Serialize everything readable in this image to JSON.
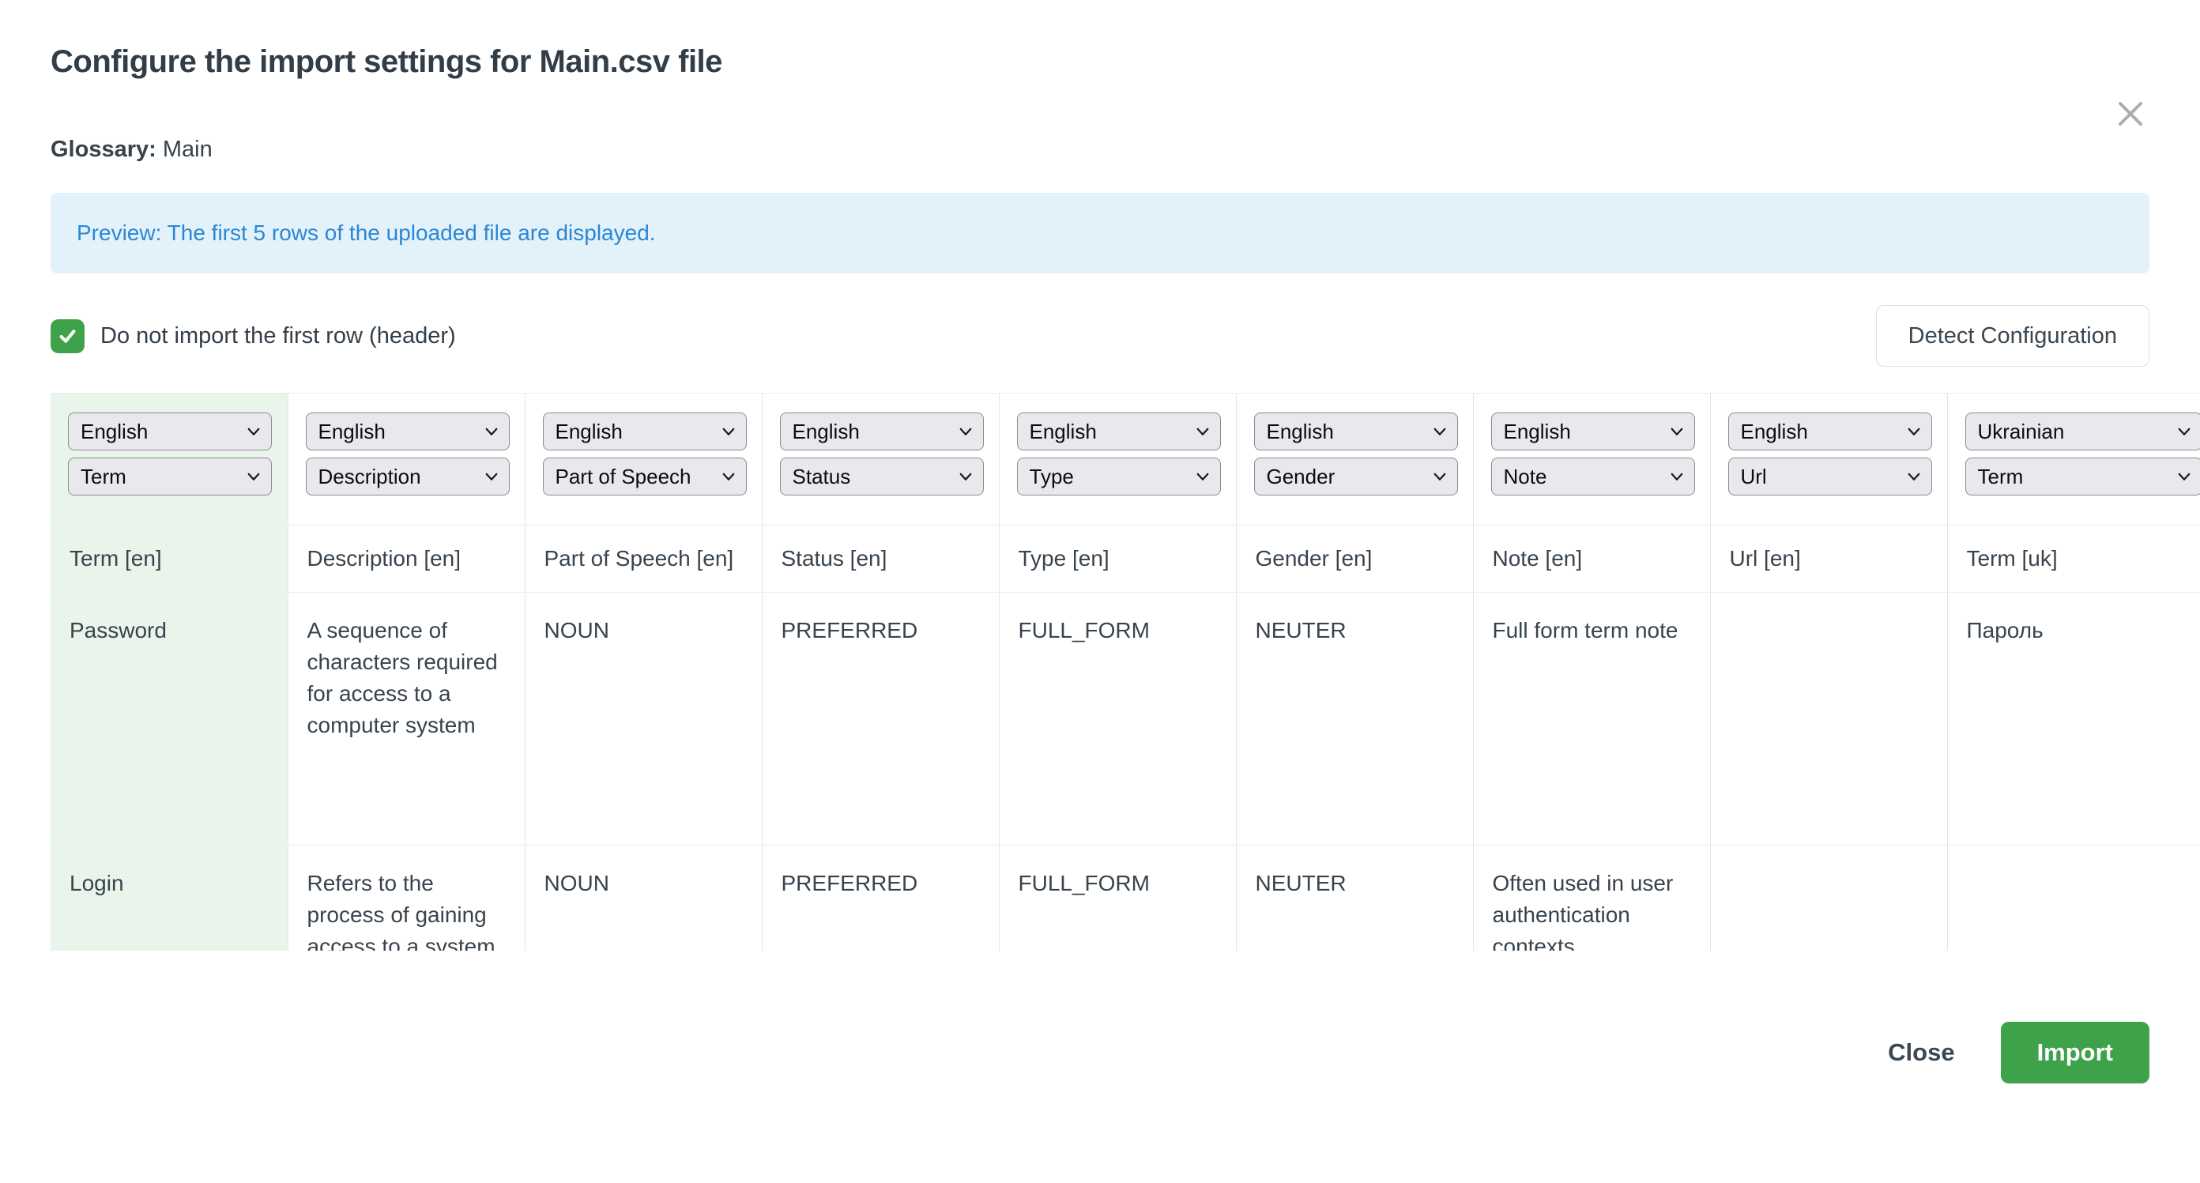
{
  "modal": {
    "title": "Configure the import settings for Main.csv file",
    "glossary_label": "Glossary:",
    "glossary_value": "Main",
    "preview_notice": "Preview: The first 5 rows of the uploaded file are displayed.",
    "header_checkbox": {
      "checked": true,
      "label": "Do not import the first row (header)"
    },
    "detect_button_label": "Detect Configuration",
    "close_button_label": "Close",
    "import_button_label": "Import"
  },
  "colors": {
    "accent_green": "#3da24a",
    "highlight_cell_green": "#e9f4ea",
    "banner_bg": "#e3f1fb",
    "banner_text": "#2b87d3"
  },
  "icons": {
    "close": "x-icon",
    "checkbox_check": "check-icon",
    "select_arrow": "chevron-down-icon"
  },
  "table": {
    "columns": [
      {
        "language": "English",
        "field": "Term",
        "header": "Term [en]",
        "highlight": true
      },
      {
        "language": "English",
        "field": "Description",
        "header": "Description [en]",
        "highlight": false
      },
      {
        "language": "English",
        "field": "Part of Speech",
        "header": "Part of Speech [en]",
        "highlight": false
      },
      {
        "language": "English",
        "field": "Status",
        "header": "Status [en]",
        "highlight": false
      },
      {
        "language": "English",
        "field": "Type",
        "header": "Type [en]",
        "highlight": false
      },
      {
        "language": "English",
        "field": "Gender",
        "header": "Gender [en]",
        "highlight": false
      },
      {
        "language": "English",
        "field": "Note",
        "header": "Note [en]",
        "highlight": false
      },
      {
        "language": "English",
        "field": "Url",
        "header": "Url [en]",
        "highlight": false
      },
      {
        "language": "Ukrainian",
        "field": "Term",
        "header": "Term [uk]",
        "highlight": false
      }
    ],
    "rows": [
      [
        "Password",
        "A sequence of characters required for access to a computer system",
        "NOUN",
        "PREFERRED",
        "FULL_FORM",
        "NEUTER",
        "Full form term note",
        "",
        "Пароль"
      ],
      [
        "Login",
        "Refers to the process of gaining access to a system",
        "NOUN",
        "PREFERRED",
        "FULL_FORM",
        "NEUTER",
        "Often used in user authentication contexts.",
        "",
        ""
      ]
    ]
  }
}
